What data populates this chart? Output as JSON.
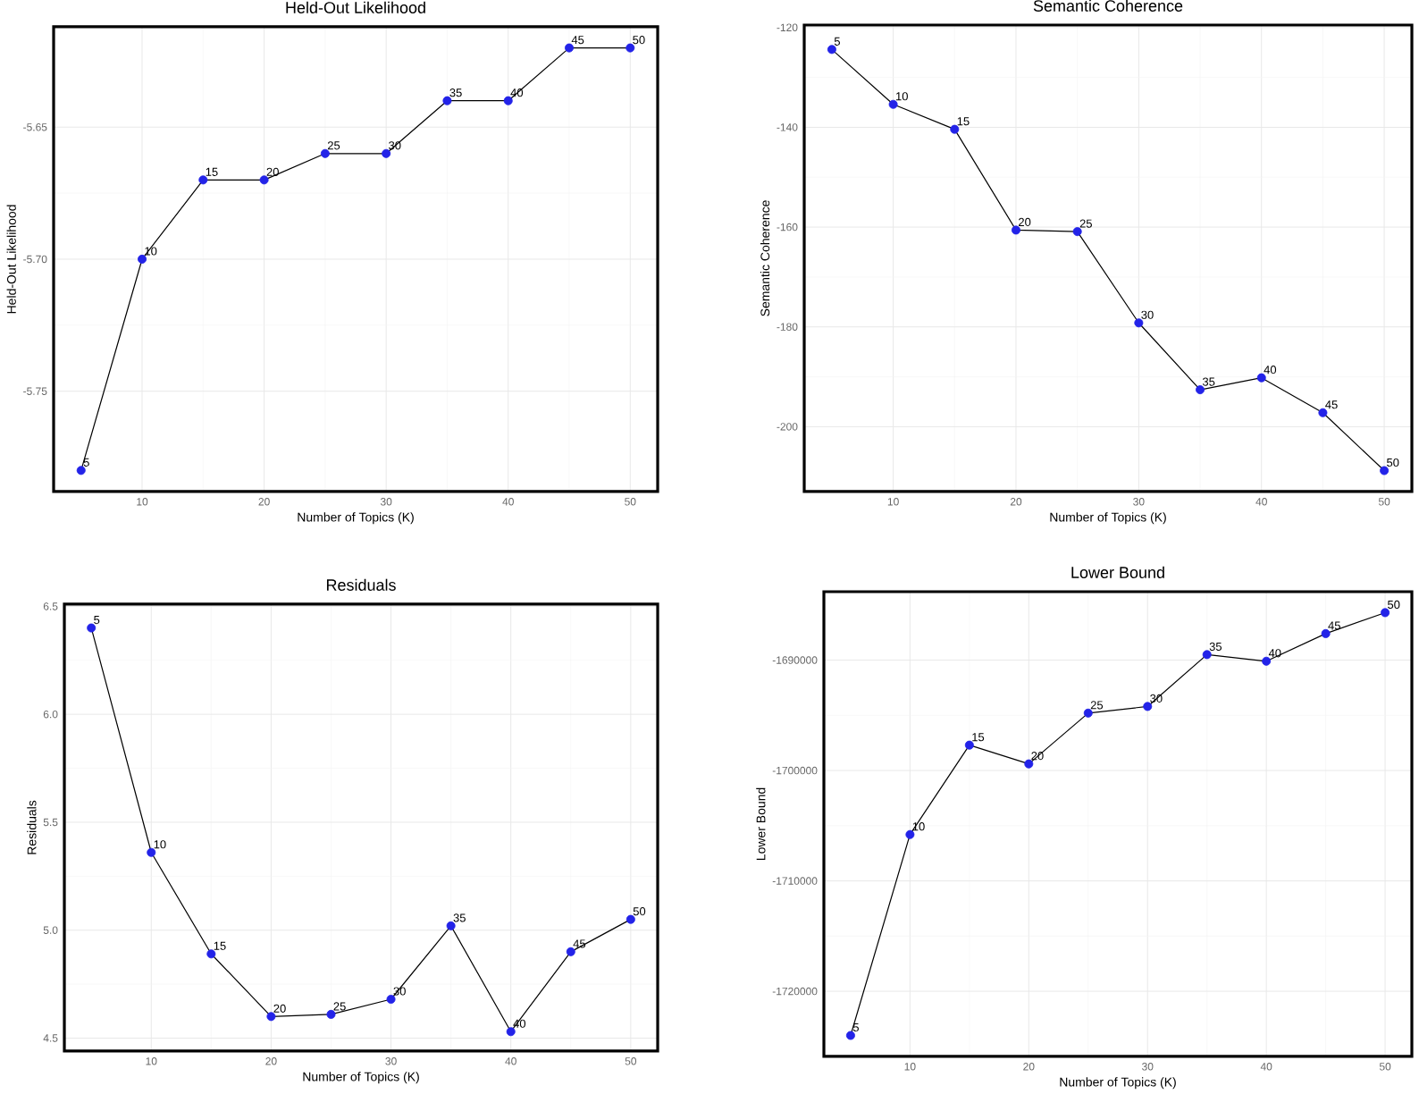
{
  "chart_data": [
    {
      "type": "line",
      "title": "Held-Out Likelihood",
      "xlabel": "Number of Topics (K)",
      "ylabel": "Held-Out Likelihood",
      "x": [
        5,
        10,
        15,
        20,
        25,
        30,
        35,
        40,
        45,
        50
      ],
      "values": [
        -5.78,
        -5.7,
        -5.67,
        -5.67,
        -5.66,
        -5.66,
        -5.64,
        -5.64,
        -5.62,
        -5.62
      ],
      "annotations": [
        {
          "text": "5",
          "x": 5,
          "y": -5.78
        },
        {
          "text": "10",
          "x": 10,
          "y": -5.7
        },
        {
          "text": "15",
          "x": 15,
          "y": -5.67
        },
        {
          "text": "20",
          "x": 20,
          "y": -5.67
        },
        {
          "text": "25",
          "x": 25,
          "y": -5.66
        },
        {
          "text": "30",
          "x": 30,
          "y": -5.66
        },
        {
          "text": "35",
          "x": 35,
          "y": -5.64
        },
        {
          "text": "40",
          "x": 40,
          "y": -5.64
        },
        {
          "text": "45",
          "x": 45,
          "y": -5.62
        },
        {
          "text": "50",
          "x": 50,
          "y": -5.62
        }
      ],
      "color": "#2323e8",
      "xlim": [
        2.75,
        52.25
      ],
      "xticks": [
        10,
        20,
        30,
        40,
        50
      ],
      "ylim": [
        -5.788,
        -5.612
      ],
      "yticks": [
        -5.65,
        {
          "value": -5.7,
          "label": "-5.70"
        },
        -5.75
      ],
      "grid": true,
      "marker": "circle",
      "line_style": "solid"
    },
    {
      "type": "line",
      "title": "Semantic Coherence",
      "xlabel": "Number of Topics (K)",
      "ylabel": "Semantic Coherence",
      "x": [
        5,
        10,
        15,
        20,
        25,
        30,
        35,
        40,
        45,
        50
      ],
      "values": [
        -124.4,
        -135.4,
        -140.4,
        -160.6,
        -160.9,
        -179.2,
        -192.6,
        -190.2,
        -197.2,
        -208.8
      ],
      "annotations": [
        {
          "text": "5",
          "x": 5,
          "y": -124.4
        },
        {
          "text": "10",
          "x": 10,
          "y": -135.4
        },
        {
          "text": "15",
          "x": 15,
          "y": -140.4
        },
        {
          "text": "20",
          "x": 20,
          "y": -160.6
        },
        {
          "text": "25",
          "x": 25,
          "y": -160.9
        },
        {
          "text": "30",
          "x": 30,
          "y": -179.2
        },
        {
          "text": "35",
          "x": 35,
          "y": -192.6
        },
        {
          "text": "40",
          "x": 40,
          "y": -190.2
        },
        {
          "text": "45",
          "x": 45,
          "y": -197.2
        },
        {
          "text": "50",
          "x": 50,
          "y": -208.8
        }
      ],
      "color": "#2323e8",
      "xlim": [
        2.75,
        52.25
      ],
      "xticks": [
        10,
        20,
        30,
        40,
        50
      ],
      "ylim": [
        -213.0,
        -119.5
      ],
      "yticks": [
        -120,
        -140,
        -160,
        -180,
        -200
      ],
      "grid": true,
      "marker": "circle",
      "line_style": "solid"
    },
    {
      "type": "line",
      "title": "Residuals",
      "xlabel": "Number of Topics (K)",
      "ylabel": "Residuals",
      "x": [
        5,
        10,
        15,
        20,
        25,
        30,
        35,
        40,
        45,
        50
      ],
      "values": [
        6.4,
        5.36,
        4.89,
        4.6,
        4.61,
        4.68,
        5.02,
        4.53,
        4.9,
        5.05
      ],
      "annotations": [
        {
          "text": "5",
          "x": 5,
          "y": 6.4
        },
        {
          "text": "10",
          "x": 10,
          "y": 5.36
        },
        {
          "text": "15",
          "x": 15,
          "y": 4.89
        },
        {
          "text": "20",
          "x": 20,
          "y": 4.6
        },
        {
          "text": "25",
          "x": 25,
          "y": 4.61
        },
        {
          "text": "30",
          "x": 30,
          "y": 4.68
        },
        {
          "text": "35",
          "x": 35,
          "y": 5.02
        },
        {
          "text": "40",
          "x": 40,
          "y": 4.53
        },
        {
          "text": "45",
          "x": 45,
          "y": 4.9
        },
        {
          "text": "50",
          "x": 50,
          "y": 5.05
        }
      ],
      "color": "#2323e8",
      "xlim": [
        2.75,
        52.25
      ],
      "xticks": [
        10,
        20,
        30,
        40,
        50
      ],
      "ylim": [
        4.44,
        6.51
      ],
      "yticks": [
        6.5,
        {
          "value": 6.0,
          "label": "6.0"
        },
        5.5,
        {
          "value": 5.0,
          "label": "5.0"
        },
        4.5
      ],
      "grid": true,
      "marker": "circle",
      "line_style": "solid"
    },
    {
      "type": "line",
      "title": "Lower Bound",
      "xlabel": "Number of Topics (K)",
      "ylabel": "Lower Bound",
      "x": [
        5,
        10,
        15,
        20,
        25,
        30,
        35,
        40,
        45,
        50
      ],
      "values": [
        -1724000,
        -1705800,
        -1697700,
        -1699400,
        -1694800,
        -1694200,
        -1689500,
        -1690100,
        -1687600,
        -1685700
      ],
      "annotations": [
        {
          "text": "5",
          "x": 5,
          "y": -1724000
        },
        {
          "text": "10",
          "x": 10,
          "y": -1705800
        },
        {
          "text": "15",
          "x": 15,
          "y": -1697700
        },
        {
          "text": "20",
          "x": 20,
          "y": -1699400
        },
        {
          "text": "25",
          "x": 25,
          "y": -1694800
        },
        {
          "text": "30",
          "x": 30,
          "y": -1694200
        },
        {
          "text": "35",
          "x": 35,
          "y": -1689500
        },
        {
          "text": "40",
          "x": 40,
          "y": -1690100
        },
        {
          "text": "45",
          "x": 45,
          "y": -1687600
        },
        {
          "text": "50",
          "x": 50,
          "y": -1685700
        }
      ],
      "color": "#2323e8",
      "xlim": [
        2.75,
        52.25
      ],
      "xticks": [
        10,
        20,
        30,
        40,
        50
      ],
      "ylim": [
        -1725900,
        -1683800
      ],
      "yticks": [
        -1690000,
        -1700000,
        -1710000,
        -1720000
      ],
      "grid": true,
      "marker": "circle",
      "line_style": "solid"
    }
  ]
}
